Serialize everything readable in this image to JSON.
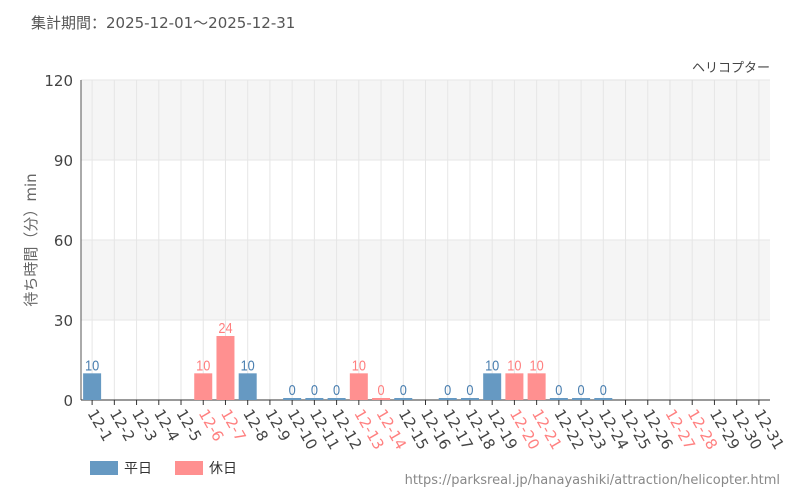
{
  "period_label": "集計期間：2025-12-01〜2025-12-31",
  "url": "https://parksreal.jp/hanayashiki/attraction/helicopter.html",
  "colors": {
    "weekday": "#6699c2",
    "holiday": "#ff9090",
    "weekday_text": "#4a7fb0",
    "holiday_text": "#ff7f7f"
  },
  "chart_data": {
    "type": "bar",
    "title": "ヘリコプター",
    "ylabel": "待ち時間（分）min",
    "xlabel": "",
    "ylim": [
      0,
      120
    ],
    "yticks": [
      0,
      30,
      60,
      90,
      120
    ],
    "grid": true,
    "legend_position": "bottom-left",
    "legend": [
      {
        "name": "平日",
        "key": "weekday"
      },
      {
        "name": "休日",
        "key": "holiday"
      }
    ],
    "categories": [
      "12-1",
      "12-2",
      "12-3",
      "12-4",
      "12-5",
      "12-6",
      "12-7",
      "12-8",
      "12-9",
      "12-10",
      "12-11",
      "12-12",
      "12-13",
      "12-14",
      "12-15",
      "12-16",
      "12-17",
      "12-18",
      "12-19",
      "12-20",
      "12-21",
      "12-22",
      "12-23",
      "12-24",
      "12-25",
      "12-26",
      "12-27",
      "12-28",
      "12-29",
      "12-30",
      "12-31"
    ],
    "holidays": [
      "12-6",
      "12-7",
      "12-13",
      "12-14",
      "12-20",
      "12-21",
      "12-27",
      "12-28"
    ],
    "values": [
      10,
      null,
      null,
      null,
      null,
      10,
      24,
      10,
      null,
      0,
      0,
      0,
      10,
      0,
      0,
      null,
      0,
      0,
      10,
      10,
      10,
      0,
      0,
      0,
      null,
      null,
      null,
      null,
      null,
      null,
      null
    ]
  }
}
